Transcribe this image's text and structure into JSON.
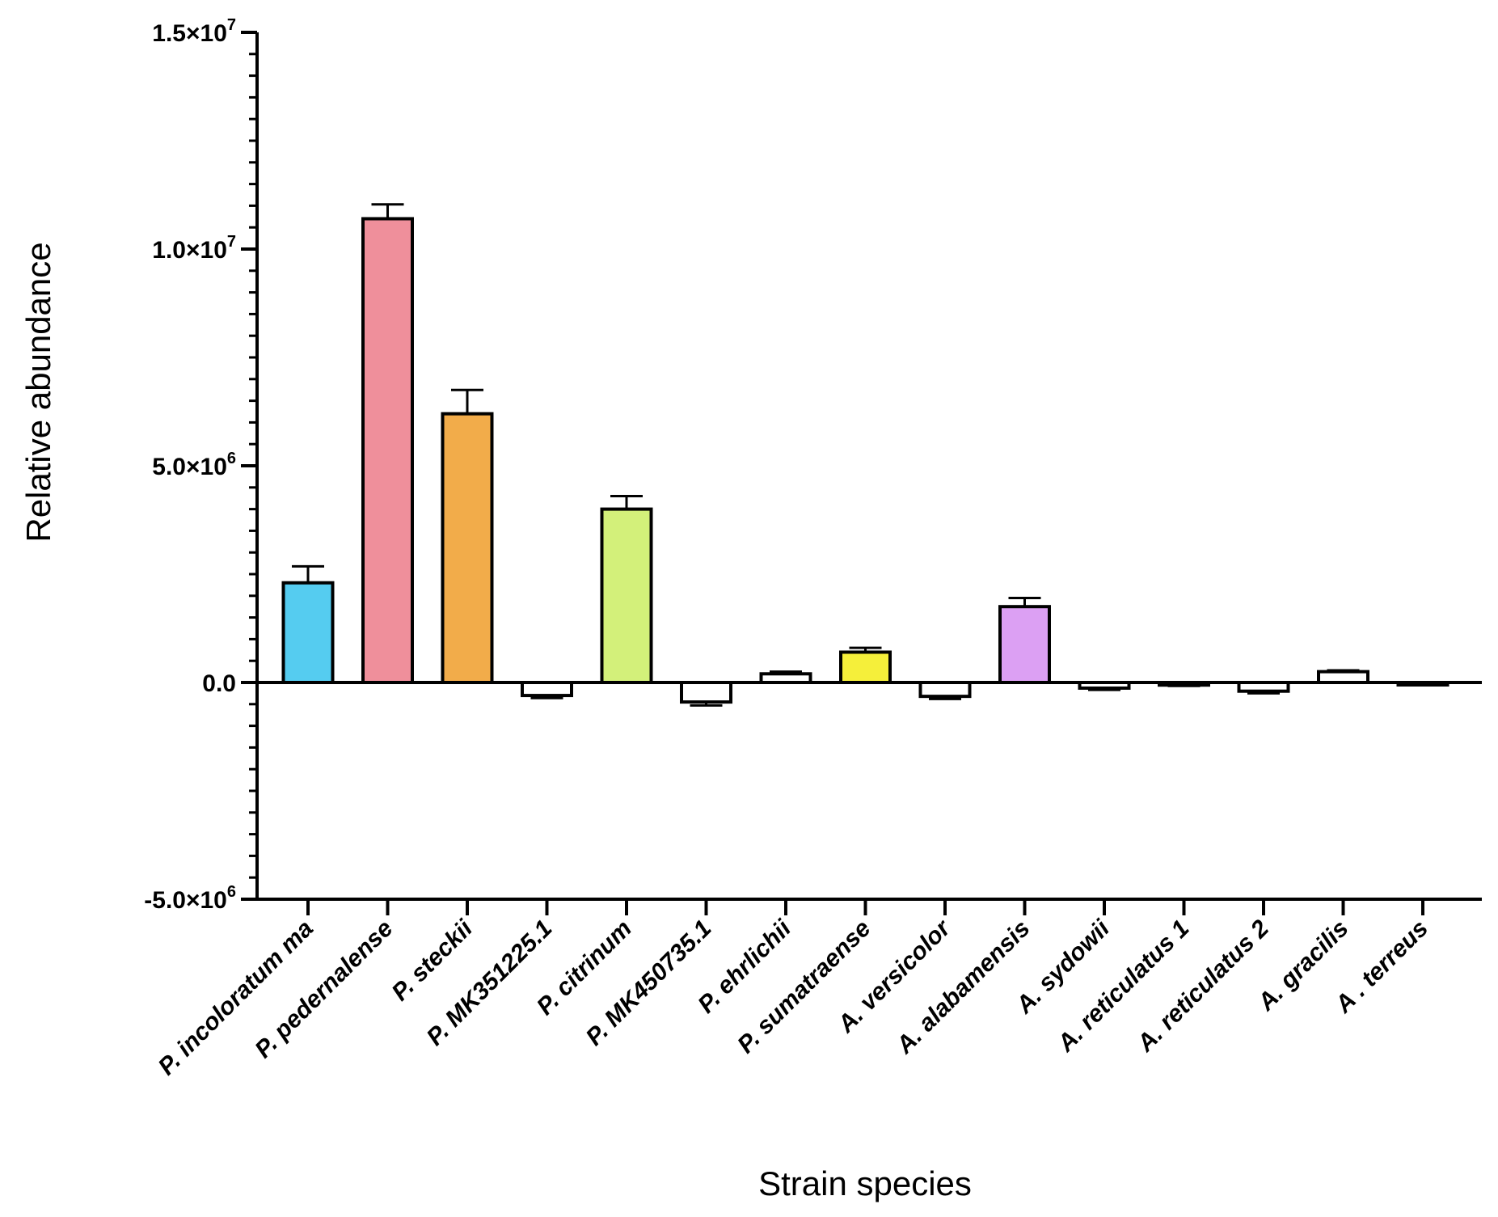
{
  "chart_data": {
    "type": "bar",
    "title": "",
    "xlabel": "Strain species",
    "ylabel": "Relative abundance",
    "ylim": [
      -5000000,
      15000000
    ],
    "yticks": [
      {
        "value": 15000000,
        "mantissa": "1.5×10",
        "exp": "7"
      },
      {
        "value": 10000000,
        "mantissa": "1.0×10",
        "exp": "7"
      },
      {
        "value": 5000000,
        "mantissa": "5.0×10",
        "exp": "6"
      },
      {
        "value": 0,
        "mantissa": "0.0",
        "exp": ""
      },
      {
        "value": -5000000,
        "mantissa": "-5.0×10",
        "exp": "6"
      }
    ],
    "minor_tick_step": 500000,
    "categories": [
      "P. incoloratum ma",
      "P. pedernalense",
      "P. steckii",
      "P. MK351225.1",
      "P. citrinum",
      "P. MK450735.1",
      "P. ehrlichii",
      "P. sumatraense",
      "A. versicolor",
      "A. alabamensis",
      "A. sydowii",
      "A. reticulatus 1",
      "A. reticulatus 2",
      "A. gracilis",
      "A . terreus"
    ],
    "values": [
      2300000,
      10700000,
      6200000,
      -300000,
      4000000,
      -450000,
      200000,
      700000,
      -320000,
      1750000,
      -130000,
      -60000,
      -200000,
      250000,
      -50000
    ],
    "errors": [
      380000,
      330000,
      550000,
      60000,
      300000,
      80000,
      50000,
      100000,
      60000,
      200000,
      40000,
      20000,
      50000,
      30000,
      10000
    ],
    "colors": [
      "#55ccf0",
      "#ef8f9b",
      "#f2ac4a",
      "#ffffff",
      "#d3f07a",
      "#ffffff",
      "#ffffff",
      "#f5ef3a",
      "#ffffff",
      "#dca0f3",
      "#ffffff",
      "#ffffff",
      "#ffffff",
      "#ffffff",
      "#ffffff"
    ]
  }
}
